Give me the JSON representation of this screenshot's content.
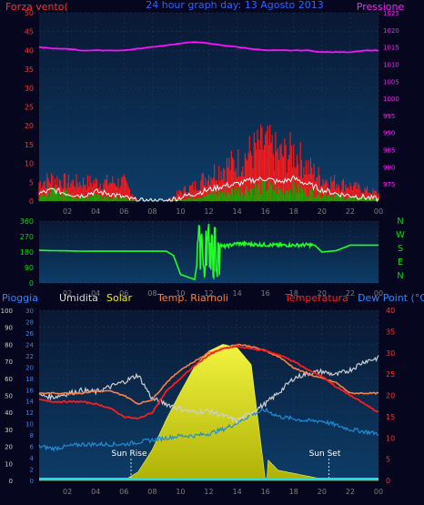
{
  "header": {
    "left_label": "Forza vento(",
    "title": "24 hour graph day:  13 Agosto 2013",
    "right_label": "Pressione"
  },
  "colors": {
    "background": "#06061e",
    "plot_bg_top": "#0c3d68",
    "plot_bg_bottom": "#0a1833",
    "wind_avg": "#ffffff",
    "wind_gust": "#ff1a1a",
    "wind_max": "#00b400",
    "pressure": "#ff10ff",
    "direction": "#22ff22",
    "rain": "#1aa3ff",
    "humidity": "#cfcfcf",
    "solar": "#f2f200",
    "temp": "#ff1c1c",
    "temp_smoothed": "#ff8040",
    "dewpoint": "#1e8cd8",
    "axis_blue": "#2a88ff",
    "axis_red": "#ff3030",
    "axis_green": "#00dd00",
    "axis_magenta": "#ff20ff",
    "time_axis": "#7f7f7f"
  },
  "x_ticks": [
    "02",
    "04",
    "06",
    "08",
    "10",
    "12",
    "14",
    "16",
    "18",
    "20",
    "22",
    "00"
  ],
  "chart_data": [
    {
      "type": "line",
      "name": "wind-pressure",
      "x_hours": [
        0,
        1,
        2,
        3,
        4,
        5,
        6,
        7,
        8,
        9,
        10,
        11,
        12,
        13,
        14,
        15,
        16,
        17,
        18,
        19,
        20,
        21,
        22,
        23,
        24
      ],
      "y_left_range": [
        0,
        50
      ],
      "y_left_ticks": [
        0,
        5,
        10,
        15,
        20,
        25,
        30,
        35,
        40,
        45,
        50
      ],
      "y_right_range": [
        970,
        1025
      ],
      "y_right_ticks": [
        975,
        980,
        985,
        990,
        995,
        1000,
        1005,
        1010,
        1015,
        1020,
        1025
      ],
      "series": [
        {
          "key": "wind_avg",
          "values": [
            2,
            3,
            2,
            1.5,
            2.5,
            2,
            1,
            0,
            0,
            0,
            1,
            2,
            3,
            4,
            4.5,
            5.5,
            6,
            5,
            6,
            4.5,
            3,
            2,
            1.5,
            1,
            0.5
          ]
        },
        {
          "key": "wind_gust",
          "values": [
            5,
            6,
            5,
            5,
            5,
            5,
            5,
            0,
            0,
            0,
            2.5,
            4,
            7,
            9,
            10,
            13,
            15,
            12,
            13,
            9,
            6,
            5,
            4,
            3,
            2
          ]
        },
        {
          "key": "wind_max",
          "values": [
            1,
            3,
            2,
            1,
            2,
            1,
            1,
            0,
            0,
            0,
            0.5,
            1,
            2,
            2.5,
            3,
            3.5,
            4,
            3,
            3.5,
            2.5,
            2,
            1.5,
            1,
            1,
            0.5
          ]
        },
        {
          "key": "pressure",
          "values": [
            1015,
            1014.5,
            1014.5,
            1014,
            1014,
            1014,
            1014,
            1014.5,
            1015,
            1015.5,
            1016,
            1016.5,
            1016,
            1015.5,
            1015,
            1014.5,
            1014,
            1014,
            1014,
            1014,
            1013.5,
            1013.5,
            1013.5,
            1014,
            1014
          ]
        }
      ]
    },
    {
      "type": "line",
      "name": "wind-direction",
      "y_range": [
        0,
        360
      ],
      "y_ticks": [
        0,
        90,
        180,
        270,
        360
      ],
      "y_right_labels": [
        "N",
        "W",
        "S",
        "E",
        "N"
      ],
      "x_hours": [
        0,
        1,
        2,
        3,
        4,
        5,
        6,
        7,
        8,
        9,
        9.5,
        10,
        11,
        11.5,
        11.7,
        12,
        12.3,
        12.5,
        13,
        14,
        15,
        16,
        17,
        18,
        19,
        19.5,
        20,
        21,
        22,
        23,
        24
      ],
      "values": [
        190,
        188,
        187,
        185,
        185,
        185,
        185,
        185,
        185,
        185,
        160,
        50,
        20,
        300,
        30,
        290,
        60,
        250,
        210,
        230,
        225,
        222,
        220,
        220,
        222,
        220,
        180,
        188,
        220,
        220,
        220
      ]
    },
    {
      "type": "area",
      "name": "temp-humidity-solar",
      "legend": [
        "Pioggia",
        "Umidita",
        "Solar",
        "Temp. Riarnoli",
        "Temperatura",
        "Dew Point (°C)"
      ],
      "x_hours": [
        0,
        1,
        2,
        3,
        4,
        5,
        6,
        7,
        8,
        9,
        10,
        11,
        12,
        13,
        14,
        15,
        16,
        17,
        18,
        19,
        20,
        21,
        22,
        23,
        24
      ],
      "y_humidity_range": [
        0,
        100
      ],
      "y_humidity_ticks": [
        0,
        10,
        20,
        30,
        40,
        50,
        60,
        70,
        80,
        90,
        100
      ],
      "y_rain_range": [
        0,
        30
      ],
      "y_rain_ticks": [
        0,
        2,
        4,
        6,
        8,
        10,
        12,
        14,
        16,
        18,
        20,
        22,
        24,
        26,
        28,
        30
      ],
      "y_temp_range": [
        0,
        40
      ],
      "y_temp_ticks": [
        0,
        5,
        10,
        15,
        20,
        25,
        30,
        35,
        40
      ],
      "series": [
        {
          "key": "humidity",
          "values": [
            50,
            49,
            51,
            53,
            52,
            55,
            58,
            62,
            48,
            45,
            42,
            40,
            41,
            38,
            35,
            40,
            45,
            52,
            60,
            63,
            64,
            62,
            65,
            70,
            72
          ]
        },
        {
          "key": "temp_smoothed",
          "values": [
            20.5,
            20.5,
            20.5,
            20.5,
            21,
            21,
            20,
            18,
            19,
            23,
            26,
            28,
            30,
            31,
            32,
            31.5,
            30.5,
            29,
            26.5,
            25,
            24,
            23,
            20.5,
            20.5,
            20.5
          ]
        },
        {
          "key": "temp",
          "values": [
            19,
            18.5,
            18.5,
            18.5,
            18,
            17,
            15,
            14.5,
            16,
            21,
            24,
            27,
            29.5,
            31,
            31.5,
            31,
            30.5,
            29.5,
            28,
            26,
            24.5,
            22,
            20,
            18,
            16
          ]
        },
        {
          "key": "dewpoint",
          "values": [
            8,
            7.5,
            8,
            8.5,
            8.5,
            8.5,
            8.5,
            9,
            9.5,
            10,
            10.5,
            10.5,
            11,
            12,
            13.5,
            15.5,
            16.5,
            15,
            14.5,
            14,
            14,
            13,
            12,
            11.5,
            11
          ]
        },
        {
          "key": "solar",
          "values": [
            0,
            0,
            0,
            0,
            0,
            0,
            0,
            50,
            180,
            360,
            520,
            670,
            760,
            800,
            780,
            680,
            0,
            0,
            0,
            0,
            0,
            0,
            0,
            0,
            0
          ]
        },
        {
          "key": "rain",
          "values": [
            0,
            0,
            0,
            0,
            0,
            0,
            0,
            0,
            0,
            0,
            0,
            0,
            0,
            0,
            0,
            0,
            0,
            0,
            0,
            0,
            0,
            0,
            0,
            0,
            0
          ]
        }
      ],
      "solar_range": [
        0,
        1000
      ],
      "annotations": [
        {
          "label": "Sun Rise",
          "hour": 6.5
        },
        {
          "label": "Sun Set",
          "hour": 20.5
        }
      ]
    }
  ]
}
